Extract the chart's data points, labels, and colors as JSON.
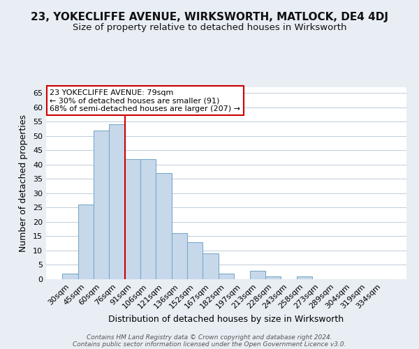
{
  "title": "23, YOKECLIFFE AVENUE, WIRKSWORTH, MATLOCK, DE4 4DJ",
  "subtitle": "Size of property relative to detached houses in Wirksworth",
  "xlabel": "Distribution of detached houses by size in Wirksworth",
  "ylabel": "Number of detached properties",
  "bar_color": "#c8d8eb",
  "bar_edge_color": "#7aaac8",
  "categories": [
    "30sqm",
    "45sqm",
    "60sqm",
    "76sqm",
    "91sqm",
    "106sqm",
    "121sqm",
    "136sqm",
    "152sqm",
    "167sqm",
    "182sqm",
    "197sqm",
    "213sqm",
    "228sqm",
    "243sqm",
    "258sqm",
    "273sqm",
    "289sqm",
    "304sqm",
    "319sqm",
    "334sqm"
  ],
  "values": [
    2,
    26,
    52,
    54,
    42,
    42,
    37,
    16,
    13,
    9,
    2,
    0,
    3,
    1,
    0,
    1,
    0,
    0,
    0,
    0,
    0
  ],
  "ylim": [
    0,
    67
  ],
  "yticks": [
    0,
    5,
    10,
    15,
    20,
    25,
    30,
    35,
    40,
    45,
    50,
    55,
    60,
    65
  ],
  "marker_index": 3,
  "marker_label": "23 YOKECLIFFE AVENUE: 79sqm",
  "annotation_line1": "← 30% of detached houses are smaller (91)",
  "annotation_line2": "68% of semi-detached houses are larger (207) →",
  "marker_color": "#cc0000",
  "annotation_box_facecolor": "#ffffff",
  "annotation_box_edgecolor": "#cc0000",
  "footer1": "Contains HM Land Registry data © Crown copyright and database right 2024.",
  "footer2": "Contains public sector information licensed under the Open Government Licence v3.0.",
  "bg_color": "#e8eef4",
  "plot_bg_color": "#ffffff",
  "grid_color": "#c0ccd8",
  "title_fontsize": 11,
  "subtitle_fontsize": 9.5,
  "axis_label_fontsize": 9,
  "tick_fontsize": 8
}
